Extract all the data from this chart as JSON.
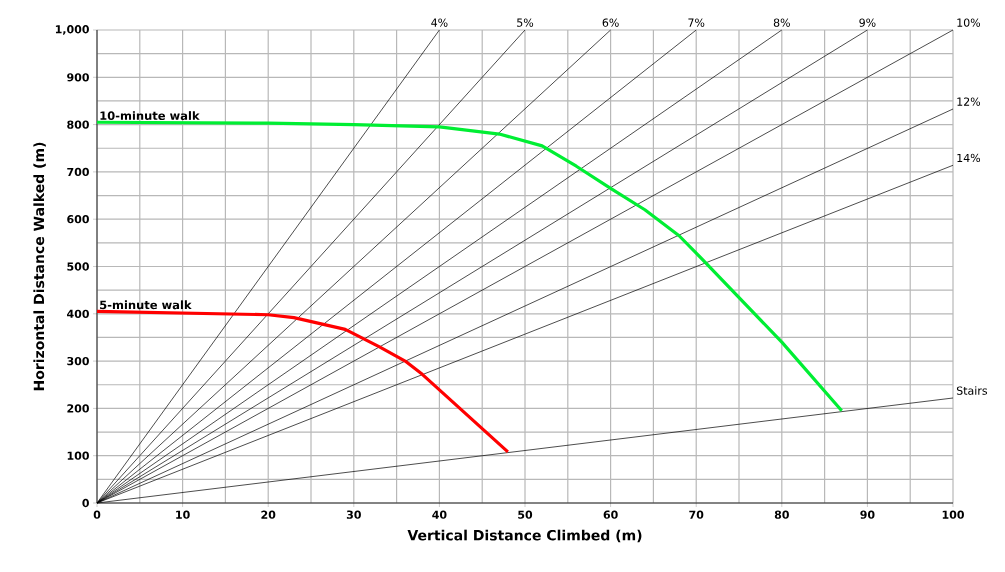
{
  "chart_data": {
    "type": "line",
    "xlabel": "Vertical Distance Climbed (m)",
    "ylabel": "Horizontal Distance Walked (m)",
    "xlim": [
      0,
      100
    ],
    "ylim": [
      0,
      1000
    ],
    "xticks": [
      0,
      {
        "value": 5,
        "label": null
      },
      10,
      {
        "value": 15,
        "label": null
      },
      20,
      {
        "value": 25,
        "label": null
      },
      30,
      {
        "value": 35,
        "label": null
      },
      40,
      {
        "value": 45,
        "label": null
      },
      50,
      {
        "value": 55,
        "label": null
      },
      60,
      {
        "value": 65,
        "label": null
      },
      70,
      {
        "value": 75,
        "label": null
      },
      80,
      {
        "value": 85,
        "label": null
      },
      90,
      {
        "value": 95,
        "label": null
      },
      100
    ],
    "yticks": [
      0,
      {
        "value": 50,
        "label": null
      },
      100,
      {
        "value": 150,
        "label": null
      },
      200,
      {
        "value": 250,
        "label": null
      },
      300,
      {
        "value": 350,
        "label": null
      },
      400,
      {
        "value": 450,
        "label": null
      },
      500,
      {
        "value": 550,
        "label": null
      },
      600,
      {
        "value": 650,
        "label": null
      },
      700,
      {
        "value": 750,
        "label": null
      },
      800,
      {
        "value": 850,
        "label": null
      },
      900,
      {
        "value": 950,
        "label": null
      },
      {
        "value": 1000,
        "label": "1,000"
      }
    ],
    "grid": true,
    "series": [
      {
        "name": "4%",
        "color": "#000000",
        "x": [
          0,
          40
        ],
        "values": [
          0,
          1000
        ]
      },
      {
        "name": "5%",
        "color": "#000000",
        "x": [
          0,
          50
        ],
        "values": [
          0,
          1000
        ]
      },
      {
        "name": "6%",
        "color": "#000000",
        "x": [
          0,
          60
        ],
        "values": [
          0,
          1000
        ]
      },
      {
        "name": "7%",
        "color": "#000000",
        "x": [
          0,
          70
        ],
        "values": [
          0,
          1000
        ]
      },
      {
        "name": "8%",
        "color": "#000000",
        "x": [
          0,
          80
        ],
        "values": [
          0,
          1000
        ]
      },
      {
        "name": "9%",
        "color": "#000000",
        "x": [
          0,
          90
        ],
        "values": [
          0,
          1000
        ]
      },
      {
        "name": "10%",
        "color": "#000000",
        "x": [
          0,
          100
        ],
        "values": [
          0,
          1000
        ]
      },
      {
        "name": "12%",
        "color": "#000000",
        "x": [
          0,
          100
        ],
        "values": [
          0,
          833
        ]
      },
      {
        "name": "14%",
        "color": "#000000",
        "x": [
          0,
          100
        ],
        "values": [
          0,
          714
        ]
      },
      {
        "name": "Stairs",
        "color": "#000000",
        "x": [
          0,
          100
        ],
        "values": [
          0,
          222
        ]
      },
      {
        "name": "10-minute walk",
        "color": "#00ee33",
        "x": [
          0,
          20,
          30,
          40,
          47,
          52,
          56,
          60,
          64,
          68,
          71,
          80,
          87
        ],
        "values": [
          805,
          803,
          800,
          795,
          780,
          755,
          712,
          665,
          620,
          565,
          510,
          340,
          195
        ]
      },
      {
        "name": "5-minute walk",
        "color": "#ff0000",
        "x": [
          0,
          20,
          23,
          29,
          33,
          36,
          38,
          48
        ],
        "values": [
          405,
          398,
          392,
          367,
          330,
          300,
          272,
          108
        ]
      }
    ]
  }
}
